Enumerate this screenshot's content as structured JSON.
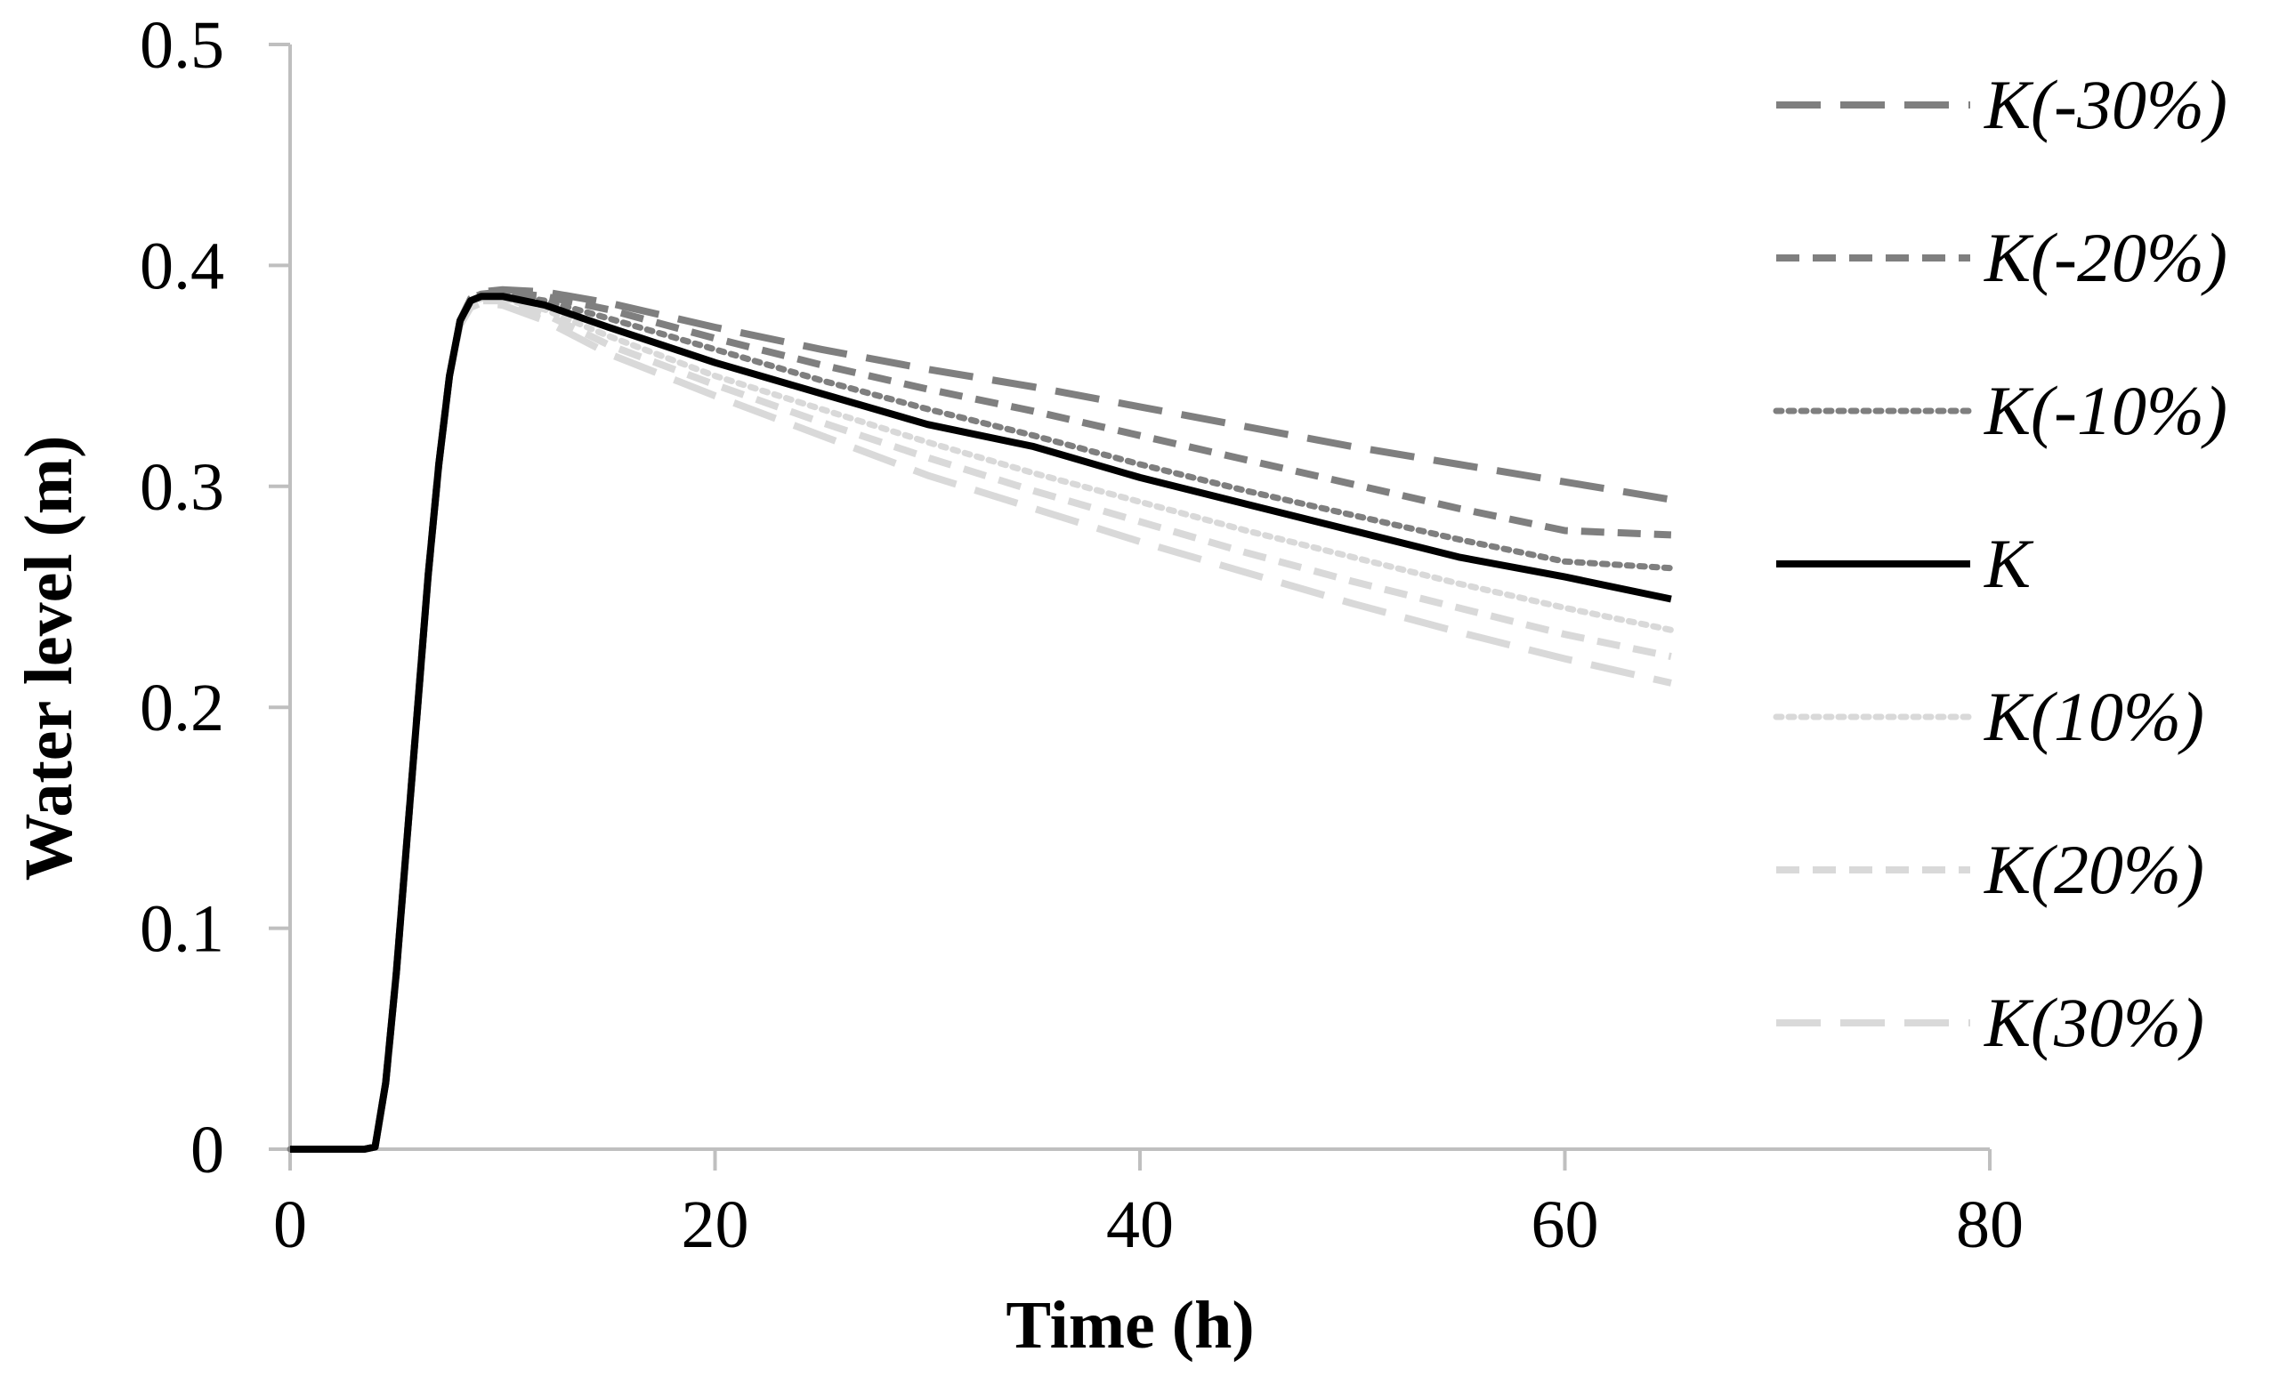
{
  "chart_data": {
    "type": "line",
    "title": "",
    "xlabel": "Time (h)",
    "ylabel": "Water level (m)",
    "xlim": [
      0,
      80
    ],
    "ylim": [
      0,
      0.5
    ],
    "xticks": [
      0,
      20,
      40,
      60,
      80
    ],
    "yticks": [
      0,
      0.1,
      0.2,
      0.3,
      0.4,
      0.5
    ],
    "ytick_labels": [
      "0",
      "0.1",
      "0.2",
      "0.3",
      "0.4",
      "0.5"
    ],
    "grid": false,
    "legend_position": "right",
    "series": [
      {
        "name": "K(-30%)",
        "color": "#7f7f7f",
        "style": "longdash",
        "points": [
          [
            0,
            0
          ],
          [
            3.5,
            0
          ],
          [
            4,
            0.001
          ],
          [
            4.5,
            0.03
          ],
          [
            5,
            0.08
          ],
          [
            5.5,
            0.14
          ],
          [
            6,
            0.2
          ],
          [
            6.5,
            0.26
          ],
          [
            7,
            0.31
          ],
          [
            7.5,
            0.35
          ],
          [
            8,
            0.375
          ],
          [
            8.5,
            0.385
          ],
          [
            9,
            0.388
          ],
          [
            10,
            0.389
          ],
          [
            12,
            0.388
          ],
          [
            15,
            0.383
          ],
          [
            20,
            0.372
          ],
          [
            25,
            0.362
          ],
          [
            30,
            0.353
          ],
          [
            35,
            0.345
          ],
          [
            40,
            0.336
          ],
          [
            45,
            0.327
          ],
          [
            50,
            0.318
          ],
          [
            55,
            0.31
          ],
          [
            60,
            0.302
          ],
          [
            65,
            0.294
          ]
        ]
      },
      {
        "name": "K(-20%)",
        "color": "#7f7f7f",
        "style": "dash",
        "points": [
          [
            0,
            0
          ],
          [
            3.5,
            0
          ],
          [
            4,
            0.001
          ],
          [
            4.5,
            0.03
          ],
          [
            5,
            0.08
          ],
          [
            5.5,
            0.14
          ],
          [
            6,
            0.2
          ],
          [
            6.5,
            0.26
          ],
          [
            7,
            0.31
          ],
          [
            7.5,
            0.35
          ],
          [
            8,
            0.375
          ],
          [
            8.5,
            0.385
          ],
          [
            9,
            0.387
          ],
          [
            10,
            0.388
          ],
          [
            12,
            0.386
          ],
          [
            15,
            0.38
          ],
          [
            20,
            0.367
          ],
          [
            25,
            0.355
          ],
          [
            30,
            0.344
          ],
          [
            35,
            0.334
          ],
          [
            40,
            0.323
          ],
          [
            45,
            0.312
          ],
          [
            50,
            0.301
          ],
          [
            55,
            0.29
          ],
          [
            60,
            0.28
          ],
          [
            65,
            0.278
          ]
        ]
      },
      {
        "name": "K(-10%)",
        "color": "#7f7f7f",
        "style": "dot",
        "points": [
          [
            0,
            0
          ],
          [
            3.5,
            0
          ],
          [
            4,
            0.001
          ],
          [
            4.5,
            0.03
          ],
          [
            5,
            0.08
          ],
          [
            5.5,
            0.14
          ],
          [
            6,
            0.2
          ],
          [
            6.5,
            0.26
          ],
          [
            7,
            0.31
          ],
          [
            7.5,
            0.35
          ],
          [
            8,
            0.375
          ],
          [
            8.5,
            0.384
          ],
          [
            9,
            0.386
          ],
          [
            10,
            0.387
          ],
          [
            12,
            0.384
          ],
          [
            15,
            0.376
          ],
          [
            20,
            0.362
          ],
          [
            25,
            0.348
          ],
          [
            30,
            0.335
          ],
          [
            35,
            0.323
          ],
          [
            40,
            0.31
          ],
          [
            45,
            0.298
          ],
          [
            50,
            0.287
          ],
          [
            55,
            0.276
          ],
          [
            60,
            0.266
          ],
          [
            65,
            0.263
          ]
        ]
      },
      {
        "name": "K",
        "color": "#000000",
        "style": "solid",
        "points": [
          [
            0,
            0
          ],
          [
            3.5,
            0
          ],
          [
            4,
            0.001
          ],
          [
            4.5,
            0.03
          ],
          [
            5,
            0.08
          ],
          [
            5.5,
            0.14
          ],
          [
            6,
            0.2
          ],
          [
            6.5,
            0.26
          ],
          [
            7,
            0.31
          ],
          [
            7.5,
            0.35
          ],
          [
            8,
            0.375
          ],
          [
            8.5,
            0.384
          ],
          [
            9,
            0.386
          ],
          [
            10,
            0.386
          ],
          [
            12,
            0.382
          ],
          [
            15,
            0.372
          ],
          [
            20,
            0.356
          ],
          [
            25,
            0.342
          ],
          [
            30,
            0.328
          ],
          [
            35,
            0.318
          ],
          [
            40,
            0.304
          ],
          [
            45,
            0.292
          ],
          [
            50,
            0.28
          ],
          [
            55,
            0.268
          ],
          [
            60,
            0.259
          ],
          [
            65,
            0.249
          ]
        ]
      },
      {
        "name": "K(10%)",
        "color": "#d9d9d9",
        "style": "dot",
        "points": [
          [
            0,
            0
          ],
          [
            3.5,
            0
          ],
          [
            4,
            0.001
          ],
          [
            4.5,
            0.03
          ],
          [
            5,
            0.08
          ],
          [
            5.5,
            0.14
          ],
          [
            6,
            0.2
          ],
          [
            6.5,
            0.26
          ],
          [
            7,
            0.31
          ],
          [
            7.5,
            0.35
          ],
          [
            8,
            0.374
          ],
          [
            8.5,
            0.383
          ],
          [
            9,
            0.385
          ],
          [
            10,
            0.385
          ],
          [
            12,
            0.38
          ],
          [
            15,
            0.368
          ],
          [
            20,
            0.35
          ],
          [
            25,
            0.335
          ],
          [
            30,
            0.32
          ],
          [
            35,
            0.306
          ],
          [
            40,
            0.293
          ],
          [
            45,
            0.28
          ],
          [
            50,
            0.268
          ],
          [
            55,
            0.256
          ],
          [
            60,
            0.245
          ],
          [
            65,
            0.235
          ]
        ]
      },
      {
        "name": "K(20%)",
        "color": "#d9d9d9",
        "style": "dash",
        "points": [
          [
            0,
            0
          ],
          [
            3.5,
            0
          ],
          [
            4,
            0.001
          ],
          [
            4.5,
            0.03
          ],
          [
            5,
            0.08
          ],
          [
            5.5,
            0.14
          ],
          [
            6,
            0.2
          ],
          [
            6.5,
            0.26
          ],
          [
            7,
            0.31
          ],
          [
            7.5,
            0.35
          ],
          [
            8,
            0.374
          ],
          [
            8.5,
            0.382
          ],
          [
            9,
            0.384
          ],
          [
            10,
            0.384
          ],
          [
            12,
            0.378
          ],
          [
            15,
            0.364
          ],
          [
            20,
            0.346
          ],
          [
            25,
            0.329
          ],
          [
            30,
            0.313
          ],
          [
            35,
            0.298
          ],
          [
            40,
            0.284
          ],
          [
            45,
            0.27
          ],
          [
            50,
            0.257
          ],
          [
            55,
            0.245
          ],
          [
            60,
            0.233
          ],
          [
            65,
            0.223
          ]
        ]
      },
      {
        "name": "K(30%)",
        "color": "#d9d9d9",
        "style": "longdash",
        "points": [
          [
            0,
            0
          ],
          [
            3.5,
            0
          ],
          [
            4,
            0.001
          ],
          [
            4.5,
            0.03
          ],
          [
            5,
            0.08
          ],
          [
            5.5,
            0.14
          ],
          [
            6,
            0.2
          ],
          [
            6.5,
            0.26
          ],
          [
            7,
            0.31
          ],
          [
            7.5,
            0.35
          ],
          [
            8,
            0.373
          ],
          [
            8.5,
            0.381
          ],
          [
            9,
            0.383
          ],
          [
            10,
            0.382
          ],
          [
            12,
            0.375
          ],
          [
            15,
            0.36
          ],
          [
            20,
            0.341
          ],
          [
            25,
            0.323
          ],
          [
            30,
            0.305
          ],
          [
            35,
            0.29
          ],
          [
            40,
            0.275
          ],
          [
            45,
            0.261
          ],
          [
            50,
            0.247
          ],
          [
            55,
            0.234
          ],
          [
            60,
            0.222
          ],
          [
            65,
            0.211
          ]
        ]
      }
    ]
  }
}
